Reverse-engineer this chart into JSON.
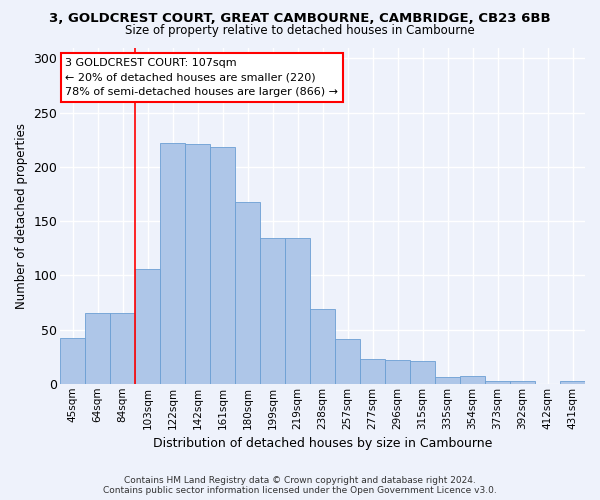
{
  "title_line1": "3, GOLDCREST COURT, GREAT CAMBOURNE, CAMBRIDGE, CB23 6BB",
  "title_line2": "Size of property relative to detached houses in Cambourne",
  "xlabel": "Distribution of detached houses by size in Cambourne",
  "ylabel": "Number of detached properties",
  "footer_line1": "Contains HM Land Registry data © Crown copyright and database right 2024.",
  "footer_line2": "Contains public sector information licensed under the Open Government Licence v3.0.",
  "categories": [
    "45sqm",
    "64sqm",
    "84sqm",
    "103sqm",
    "122sqm",
    "142sqm",
    "161sqm",
    "180sqm",
    "199sqm",
    "219sqm",
    "238sqm",
    "257sqm",
    "277sqm",
    "296sqm",
    "315sqm",
    "335sqm",
    "354sqm",
    "373sqm",
    "392sqm",
    "412sqm",
    "431sqm"
  ],
  "values": [
    42,
    65,
    65,
    106,
    222,
    221,
    218,
    168,
    134,
    134,
    69,
    41,
    23,
    22,
    21,
    6,
    7,
    3,
    3,
    0,
    3
  ],
  "bar_color": "#aec6e8",
  "bar_edge_color": "#6b9fd4",
  "annotation_text": "3 GOLDCREST COURT: 107sqm\n← 20% of detached houses are smaller (220)\n78% of semi-detached houses are larger (866) →",
  "vline_x": 2.5,
  "vline_color": "red",
  "ylim": [
    0,
    310
  ],
  "yticks": [
    0,
    50,
    100,
    150,
    200,
    250,
    300
  ],
  "background_color": "#eef2fb",
  "grid_color": "#ffffff",
  "annotation_box_color": "white",
  "annotation_box_edge": "red"
}
